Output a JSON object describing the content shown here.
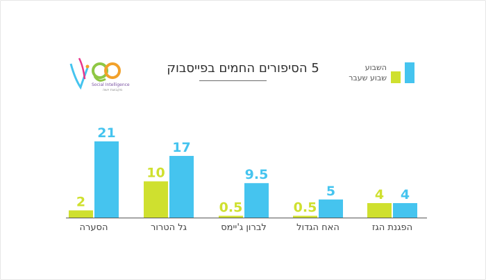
{
  "title": "5 הסיפורים החמים בפייסבוק",
  "logo": {
    "mark": "vi90",
    "tagline": "Social Intelligence",
    "subline": "מקבוצת יושה"
  },
  "legend": {
    "current": "השבוע",
    "previous": "שבוע שעבר"
  },
  "colors": {
    "current": "#45c4ef",
    "previous": "#cfe02f",
    "axis": "#555555",
    "category_text": "#444444"
  },
  "chart_data": {
    "type": "bar",
    "categories": [
      "הסערה",
      "גל הטרור",
      "לברון ג'יימס",
      "האח הגדול",
      "הפגנת הגז"
    ],
    "series": [
      {
        "name": "שבוע שעבר",
        "values": [
          2,
          10,
          0.5,
          0.5,
          4
        ],
        "labels": [
          "2",
          "10",
          "0.5",
          "0.5",
          "4"
        ]
      },
      {
        "name": "השבוע",
        "values": [
          21,
          17,
          9.5,
          5,
          4
        ],
        "labels": [
          "21",
          "17",
          "9.5",
          "5",
          "4"
        ]
      }
    ],
    "ylim": [
      0,
      21
    ],
    "grid": false,
    "legend_position": "top-right"
  }
}
